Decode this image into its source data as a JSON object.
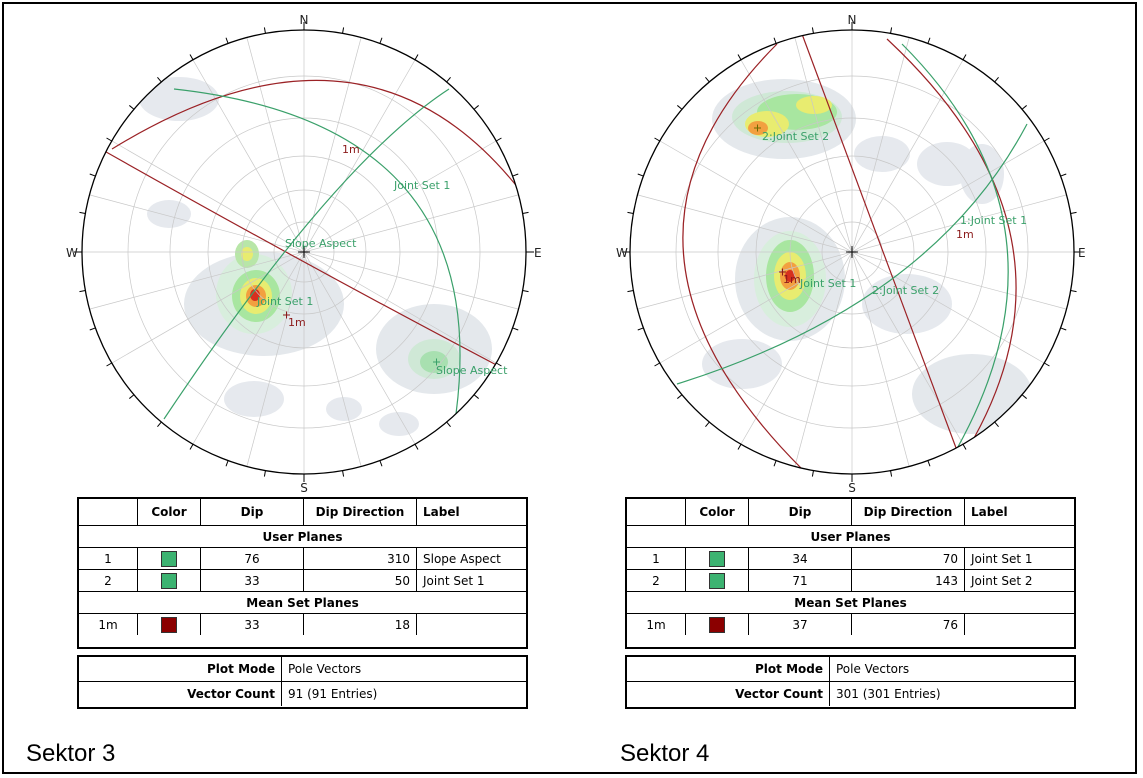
{
  "stereonets": [
    {
      "north_label": "N",
      "south_label": "S",
      "east_label": "E",
      "west_label": "W",
      "pole_labels": [
        {
          "text": "Slope Aspect",
          "color": "#3aa06a"
        },
        {
          "text": "Joint Set 1",
          "color": "#3aa06a"
        },
        {
          "text": "Joint Set 1",
          "color": "#3aa06a"
        },
        {
          "text": "Slope Aspect",
          "color": "#3aa06a"
        },
        {
          "text": "1m",
          "color": "#8b1a1a"
        },
        {
          "text": "1m",
          "color": "#8b1a1a"
        }
      ],
      "table": {
        "headers": [
          "",
          "Color",
          "Dip",
          "Dip Direction",
          "Label"
        ],
        "user_planes_title": "User Planes",
        "user_planes": [
          {
            "id": "1",
            "color": "#3cb371",
            "dip": "76",
            "dip_direction": "310",
            "label": "Slope Aspect"
          },
          {
            "id": "2",
            "color": "#3cb371",
            "dip": "33",
            "dip_direction": "50",
            "label": "Joint Set 1"
          }
        ],
        "mean_set_title": "Mean Set Planes",
        "mean_set": [
          {
            "id": "1m",
            "color": "#8b0000",
            "dip": "33",
            "dip_direction": "18",
            "label": ""
          }
        ]
      },
      "plot_mode_label": "Plot Mode",
      "plot_mode_value": "Pole Vectors",
      "vector_count_label": "Vector Count",
      "vector_count_value": "91 (91 Entries)",
      "sector_title": "Sektor 3"
    },
    {
      "north_label": "N",
      "south_label": "S",
      "east_label": "E",
      "west_label": "W",
      "pole_labels": [
        {
          "text": "2:Joint Set 2",
          "color": "#3aa06a"
        },
        {
          "text": "1:Joint Set 1",
          "color": "#3aa06a"
        },
        {
          "text": "1m",
          "color": "#8b1a1a"
        },
        {
          "text": "1m",
          "color": "#8b1a1a"
        },
        {
          "text": "Joint Set 1",
          "color": "#3aa06a"
        },
        {
          "text": "2:Joint Set 2",
          "color": "#3aa06a"
        }
      ],
      "table": {
        "headers": [
          "",
          "Color",
          "Dip",
          "Dip Direction",
          "Label"
        ],
        "user_planes_title": "User Planes",
        "user_planes": [
          {
            "id": "1",
            "color": "#3cb371",
            "dip": "34",
            "dip_direction": "70",
            "label": "Joint Set 1"
          },
          {
            "id": "2",
            "color": "#3cb371",
            "dip": "71",
            "dip_direction": "143",
            "label": "Joint Set 2"
          }
        ],
        "mean_set_title": "Mean Set Planes",
        "mean_set": [
          {
            "id": "1m",
            "color": "#8b0000",
            "dip": "37",
            "dip_direction": "76",
            "label": ""
          }
        ]
      },
      "plot_mode_label": "Plot Mode",
      "plot_mode_value": "Pole Vectors",
      "vector_count_label": "Vector Count",
      "vector_count_value": "301 (301 Entries)",
      "sector_title": "Sektor 4"
    }
  ]
}
